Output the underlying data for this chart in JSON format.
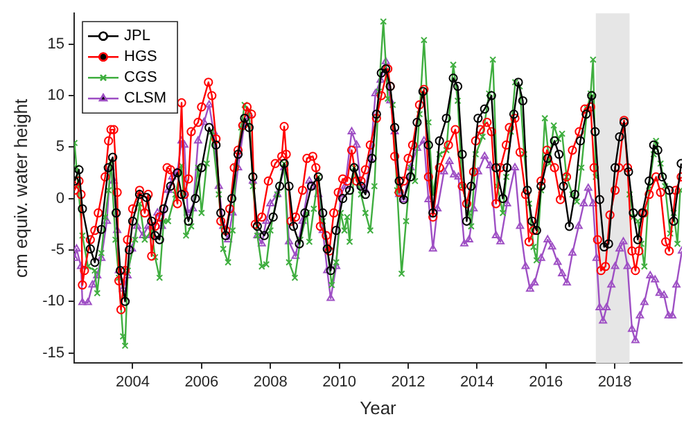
{
  "chart_data": {
    "type": "line",
    "xlabel": "Year",
    "ylabel": "cm equiv. water height",
    "xlim": [
      2002.3,
      2019.95
    ],
    "ylim": [
      -16,
      18
    ],
    "xticks": [
      2004,
      2006,
      2008,
      2010,
      2012,
      2014,
      2016,
      2018
    ],
    "yticks": [
      -15,
      -10,
      -5,
      0,
      5,
      10,
      15
    ],
    "grid": false,
    "legend": "top left",
    "bands": [
      {
        "axis": "x",
        "from": 2017.45,
        "to": 2018.43,
        "color": "#e6e6e6"
      }
    ],
    "series": [
      {
        "name": "JPL",
        "color": "#000000",
        "marker": "circle",
        "x": [
          2002.31,
          2002.44,
          2002.54,
          2002.77,
          2002.9,
          2003.09,
          2003.29,
          2003.42,
          2003.52,
          2003.64,
          2003.78,
          2003.9,
          2004.0,
          2004.2,
          2004.4,
          2004.55,
          2004.65,
          2004.78,
          2004.9,
          2005.1,
          2005.3,
          2005.42,
          2005.62,
          2005.82,
          2006.0,
          2006.22,
          2006.42,
          2006.56,
          2006.7,
          2006.88,
          2007.06,
          2007.25,
          2007.38,
          2007.49,
          2007.62,
          2007.82,
          2008.08,
          2008.27,
          2008.4,
          2008.54,
          2008.67,
          2008.84,
          2009.0,
          2009.19,
          2009.39,
          2009.52,
          2009.65,
          2009.75,
          2009.91,
          2010.1,
          2010.3,
          2010.43,
          2010.63,
          2010.76,
          2010.95,
          2011.08,
          2011.22,
          2011.35,
          2011.48,
          2011.61,
          2011.74,
          2011.87,
          2012.07,
          2012.26,
          2012.43,
          2012.59,
          2012.72,
          2012.91,
          2013.11,
          2013.31,
          2013.44,
          2013.57,
          2013.7,
          2013.83,
          2014.03,
          2014.22,
          2014.42,
          2014.55,
          2014.75,
          2014.87,
          2015.07,
          2015.2,
          2015.33,
          2015.46,
          2015.6,
          2015.73,
          2015.86,
          2016.05,
          2016.25,
          2016.38,
          2016.51,
          2016.68,
          2016.84,
          2017.0,
          2017.17,
          2017.33,
          2017.43,
          2017.56,
          2017.69,
          2017.82,
          2018.01,
          2018.14,
          2018.27,
          2018.4,
          2018.54,
          2018.67,
          2018.8,
          2019.0,
          2019.13,
          2019.25,
          2019.38,
          2019.58,
          2019.71,
          2019.93
        ],
        "values": [
          1.7,
          2.8,
          -1,
          -4.9,
          -6.2,
          -3,
          3,
          4,
          -1.4,
          -7,
          -10,
          -5,
          -2.2,
          0.4,
          0.1,
          -2.2,
          -3.6,
          -4,
          -1,
          1.2,
          2.5,
          0.4,
          -2.2,
          0,
          3,
          6.9,
          5.2,
          -1.4,
          -3.6,
          0,
          4.3,
          7.8,
          6.9,
          2.1,
          -2.7,
          -3.6,
          -1.8,
          1.2,
          3.4,
          1.2,
          -2.7,
          -4.4,
          -1.4,
          1.2,
          2.1,
          -1.4,
          -4.9,
          -7,
          -3.1,
          0,
          0.8,
          3,
          1.2,
          0.4,
          3.9,
          8.2,
          12.2,
          12.6,
          10.9,
          6.9,
          1.7,
          -0.1,
          2.1,
          7.4,
          10.4,
          5.2,
          -1.4,
          5.6,
          7.8,
          11.7,
          10.9,
          4.3,
          -2.2,
          1.2,
          7.8,
          8.7,
          10,
          3,
          0,
          3,
          8.2,
          11.3,
          9.5,
          0.8,
          -2.2,
          -3.1,
          1.2,
          3.9,
          5.6,
          4.3,
          1.2,
          -2.7,
          0.4,
          5.6,
          8.2,
          10,
          6.5,
          -0.1,
          -4.7,
          -4.4,
          3,
          6,
          7.4,
          2.6,
          -1.4,
          -4,
          -1.4,
          1.7,
          5.2,
          4.7,
          2.1,
          0.8,
          -2.2,
          3.4
        ]
      },
      {
        "name": "HGS",
        "color": "#ff0000",
        "marker": "circle",
        "x": [
          2002.31,
          2002.44,
          2002.5,
          2002.54,
          2002.6,
          2002.77,
          2002.9,
          2003.0,
          2003.2,
          2003.3,
          2003.37,
          2003.45,
          2003.55,
          2003.6,
          2003.66,
          2003.78,
          2003.85,
          2004.0,
          2004.2,
          2004.35,
          2004.45,
          2004.55,
          2004.65,
          2004.78,
          2005.0,
          2005.1,
          2005.3,
          2005.42,
          2005.5,
          2005.62,
          2005.7,
          2005.9,
          2006.0,
          2006.2,
          2006.3,
          2006.42,
          2006.56,
          2006.7,
          2006.82,
          2006.95,
          2007.06,
          2007.2,
          2007.32,
          2007.45,
          2007.56,
          2007.75,
          2007.94,
          2008.14,
          2008.33,
          2008.4,
          2008.46,
          2008.6,
          2008.73,
          2008.93,
          2009.06,
          2009.23,
          2009.32,
          2009.45,
          2009.62,
          2009.71,
          2009.84,
          2009.97,
          2010.1,
          2010.23,
          2010.36,
          2010.5,
          2010.63,
          2010.76,
          2010.9,
          2011.08,
          2011.22,
          2011.41,
          2011.48,
          2011.61,
          2011.74,
          2011.87,
          2012.0,
          2012.13,
          2012.33,
          2012.46,
          2012.59,
          2012.72,
          2012.91,
          2013.17,
          2013.37,
          2013.57,
          2013.7,
          2013.9,
          2013.96,
          2014.1,
          2014.29,
          2014.42,
          2014.55,
          2014.68,
          2014.85,
          2014.94,
          2015.1,
          2015.25,
          2015.41,
          2015.51,
          2015.64,
          2015.86,
          2016.03,
          2016.25,
          2016.42,
          2016.6,
          2016.77,
          2016.97,
          2017.13,
          2017.3,
          2017.4,
          2017.5,
          2017.6,
          2017.73,
          2017.86,
          2018.01,
          2018.12,
          2018.27,
          2018.37,
          2018.5,
          2018.6,
          2018.7,
          2018.84,
          2019.0,
          2019.2,
          2019.33,
          2019.48,
          2019.58,
          2019.77,
          2019.93
        ],
        "values": [
          0.8,
          1.7,
          0.4,
          -8.4,
          -7,
          -4,
          -3.1,
          -1.4,
          2.1,
          5.6,
          6.7,
          6.7,
          0.6,
          -8,
          -10.8,
          -7,
          -4,
          -1,
          0.8,
          -1.4,
          0.4,
          -5.6,
          -2.7,
          -1.8,
          3,
          2.8,
          -0.5,
          9.3,
          0.4,
          1.9,
          6.5,
          7.4,
          8.9,
          11.3,
          10,
          5.8,
          -2.2,
          -3.1,
          -1,
          3,
          4.7,
          7.1,
          8.9,
          8.2,
          -2.5,
          -1.8,
          1.7,
          3.4,
          4.1,
          7,
          4.3,
          -2.2,
          -1.8,
          0.8,
          3.9,
          4.1,
          3,
          -2.7,
          -3.6,
          -5.1,
          -1.4,
          0.6,
          1.9,
          1.7,
          4.7,
          1.7,
          1.7,
          2.8,
          5.2,
          7.8,
          10,
          12.6,
          10.9,
          4.1,
          0.6,
          1.7,
          3.9,
          5.2,
          9.1,
          10.6,
          2.1,
          -1.8,
          3,
          5.2,
          6.7,
          1.2,
          -0.5,
          2.6,
          5.6,
          6.7,
          7.4,
          6.5,
          -0.5,
          3,
          5.2,
          6.9,
          7.8,
          4.5,
          0.4,
          -4.2,
          -3.1,
          1.7,
          4.7,
          3,
          -0.1,
          2.1,
          4.7,
          6.5,
          8.7,
          8.9,
          3,
          -4,
          -7,
          -6.6,
          -1.6,
          0.8,
          3,
          7.6,
          3,
          -5.1,
          -7,
          -5.1,
          -1.4,
          0.4,
          2.1,
          0.6,
          -4.2,
          -5.1,
          0.8,
          2.1
        ]
      },
      {
        "name": "CGS",
        "color": "#3fae3f",
        "marker": "cross",
        "x": [
          2002.31,
          2002.37,
          2002.54,
          2002.7,
          2002.9,
          2002.97,
          2003.09,
          2003.2,
          2003.3,
          2003.37,
          2003.5,
          2003.6,
          2003.72,
          2003.78,
          2003.86,
          2004.07,
          2004.2,
          2004.35,
          2004.55,
          2004.65,
          2004.78,
          2004.9,
          2005.03,
          2005.24,
          2005.42,
          2005.55,
          2005.7,
          2005.9,
          2006.0,
          2006.15,
          2006.3,
          2006.5,
          2006.63,
          2006.77,
          2006.9,
          2007.0,
          2007.15,
          2007.25,
          2007.38,
          2007.49,
          2007.62,
          2007.75,
          2007.88,
          2008.0,
          2008.2,
          2008.4,
          2008.54,
          2008.71,
          2008.87,
          2009.06,
          2009.13,
          2009.26,
          2009.39,
          2009.52,
          2009.65,
          2009.78,
          2009.91,
          2010.04,
          2010.15,
          2010.23,
          2010.3,
          2010.43,
          2010.63,
          2010.76,
          2010.9,
          2011.02,
          2011.15,
          2011.28,
          2011.41,
          2011.55,
          2011.68,
          2011.81,
          2011.94,
          2012.07,
          2012.2,
          2012.33,
          2012.46,
          2012.59,
          2012.72,
          2012.91,
          2013.11,
          2013.31,
          2013.44,
          2013.57,
          2013.77,
          2013.83,
          2013.96,
          2014.16,
          2014.35,
          2014.46,
          2014.59,
          2014.75,
          2014.85,
          2014.98,
          2015.11,
          2015.24,
          2015.37,
          2015.51,
          2015.64,
          2015.73,
          2015.86,
          2015.97,
          2016.1,
          2016.23,
          2016.36,
          2016.47,
          2016.6,
          2016.77,
          2016.9,
          2017.03,
          2017.2,
          2017.3,
          2017.37,
          2017.45,
          2017.9,
          2018.43,
          2018.54,
          2018.67,
          2018.77,
          2018.86,
          2019.0,
          2019.13,
          2019.2,
          2019.33,
          2019.46,
          2019.61,
          2019.71,
          2019.82,
          2019.9
        ],
        "values": [
          5.4,
          3,
          -3.6,
          -6.6,
          -7,
          -9.2,
          -5.3,
          -1.8,
          0.8,
          3.6,
          -4,
          -7.7,
          -13.4,
          -14.3,
          -7,
          -4,
          -0.5,
          -4,
          -3.1,
          -5.7,
          -7.7,
          -2.2,
          -2.2,
          0.4,
          3.2,
          -3.6,
          -2.7,
          3,
          -1.4,
          3.4,
          6.5,
          0.4,
          -4.9,
          -6.2,
          -3.1,
          3,
          6.9,
          9.1,
          8.4,
          1.2,
          -3.6,
          -6.6,
          -6.4,
          -3.1,
          0.4,
          3.4,
          -6.2,
          -7.7,
          -4,
          -1.4,
          -4.2,
          -1,
          2.1,
          -2.2,
          -4.9,
          -8.4,
          -6.2,
          -1.4,
          -3.1,
          -1.8,
          -4.2,
          3,
          0.4,
          -1.4,
          -3.1,
          1.2,
          10.4,
          17.2,
          9.7,
          9.1,
          0.8,
          -7.3,
          -2.2,
          3,
          1.7,
          8.2,
          15.4,
          7.4,
          0.4,
          4.3,
          4.7,
          13,
          9.5,
          1.2,
          -1.4,
          -2.7,
          4.3,
          6,
          10.2,
          13.5,
          1.2,
          -1.4,
          2.1,
          6.5,
          11.3,
          10.9,
          4.3,
          -0.5,
          -4.7,
          -6,
          0.8,
          7.8,
          3.4,
          7.1,
          5.8,
          6.3,
          2.1,
          0.4,
          -0.3,
          3,
          8.7,
          10.2,
          13.5,
          2.1,
          null,
          0.4,
          -1.8,
          -2.2,
          -4.4,
          -6.6,
          1.2,
          4.3,
          5.6,
          3.4,
          1.2,
          -3.4,
          -1.4,
          -4.4,
          0.8
        ]
      },
      {
        "name": "CLSM",
        "color": "#9e4fc4",
        "marker": "triangle",
        "x": [
          2002.31,
          2002.37,
          2002.5,
          2002.54,
          2002.7,
          2002.83,
          2002.97,
          2003.09,
          2003.25,
          2003.35,
          2003.45,
          2003.55,
          2003.6,
          2003.72,
          2003.85,
          2003.98,
          2004.13,
          2004.3,
          2004.45,
          2004.55,
          2004.72,
          2004.85,
          2005.03,
          2005.15,
          2005.3,
          2005.42,
          2005.5,
          2005.6,
          2005.75,
          2005.9,
          2006.07,
          2006.22,
          2006.35,
          2006.5,
          2006.63,
          2006.77,
          2006.9,
          2007.06,
          2007.25,
          2007.38,
          2007.49,
          2007.62,
          2007.75,
          2007.88,
          2008.0,
          2008.2,
          2008.4,
          2008.54,
          2008.73,
          2008.93,
          2009.13,
          2009.26,
          2009.39,
          2009.52,
          2009.65,
          2009.75,
          2009.91,
          2010.04,
          2010.17,
          2010.36,
          2010.5,
          2010.63,
          2010.76,
          2010.9,
          2011.05,
          2011.2,
          2011.35,
          2011.48,
          2011.61,
          2011.74,
          2011.87,
          2012.07,
          2012.26,
          2012.46,
          2012.59,
          2012.72,
          2012.85,
          2013.04,
          2013.2,
          2013.33,
          2013.46,
          2013.63,
          2013.77,
          2013.9,
          2014.03,
          2014.22,
          2014.38,
          2014.55,
          2014.68,
          2014.87,
          2015.1,
          2015.25,
          2015.41,
          2015.54,
          2015.67,
          2015.86,
          2016.05,
          2016.18,
          2016.34,
          2016.47,
          2016.61,
          2016.77,
          2016.95,
          2017.1,
          2017.23,
          2017.37,
          2017.47,
          2017.56,
          2017.66,
          2017.76,
          2017.9,
          2018.01,
          2018.14,
          2018.25,
          2018.37,
          2018.5,
          2018.6,
          2018.73,
          2018.86,
          2019.03,
          2019.17,
          2019.3,
          2019.43,
          2019.56,
          2019.67,
          2019.79,
          2019.95
        ],
        "values": [
          -5.8,
          -4.9,
          -6.6,
          -10.1,
          -10.1,
          -8.4,
          -7.5,
          -5.8,
          -2.2,
          3,
          1.7,
          -3.1,
          -7,
          -8.8,
          -7.5,
          -4.9,
          -2.7,
          -3.6,
          -2.7,
          -3.6,
          -1.4,
          -2.7,
          0.8,
          2.1,
          2.6,
          5.6,
          5.2,
          -1.4,
          -1,
          5.6,
          7.4,
          9.1,
          6.5,
          1.2,
          -2.7,
          -4,
          -1.4,
          3,
          7.4,
          8.2,
          1.7,
          -3.6,
          -4.4,
          -2.2,
          -0.5,
          0.4,
          3,
          -4.2,
          -5.6,
          -2.2,
          1.7,
          1.2,
          0.4,
          -3.1,
          -7,
          -9.7,
          -6.6,
          0.4,
          1.2,
          6.5,
          5.2,
          1.2,
          0.8,
          3.9,
          10.2,
          11.5,
          13.3,
          9.5,
          6.5,
          0.4,
          -0.1,
          3,
          4.9,
          5.6,
          -0.1,
          -4.9,
          -1,
          2.6,
          3.6,
          2.3,
          2.1,
          -4.4,
          -4,
          -1,
          2.6,
          4.1,
          3.2,
          -3.6,
          -4.2,
          -0.5,
          3,
          -2.7,
          -6.6,
          -8.8,
          -8.2,
          -5.8,
          -4,
          -4.7,
          -6.2,
          -7.3,
          -8.2,
          -5.3,
          -2.7,
          -0.5,
          1,
          -0.5,
          -5.8,
          -10.6,
          -11.9,
          -10.6,
          -8.4,
          -6.6,
          -4.9,
          -4.2,
          -6.6,
          -12.7,
          -13.8,
          -11.4,
          -10.1,
          -7.5,
          -7.9,
          -9.2,
          -9.4,
          -11.4,
          -11.4,
          -8.4,
          -5.1
        ]
      }
    ]
  }
}
